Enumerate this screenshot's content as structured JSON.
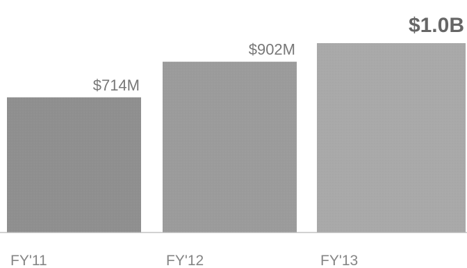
{
  "chart_data": {
    "type": "bar",
    "categories": [
      "FY'11",
      "FY'12",
      "FY'13"
    ],
    "values": [
      714,
      902,
      1000
    ],
    "value_labels": [
      "$714M",
      "$902M",
      "$1.0B"
    ],
    "unit": "$M",
    "ylim": [
      0,
      1000
    ],
    "grid": false,
    "legend": "none",
    "colors": {
      "bars": [
        "#8f8f8f",
        "#9b9b9b",
        "#a9a9a9"
      ],
      "value_label": "#777777",
      "highlight_label": "#666666",
      "axis": "#b7b7b7",
      "category_label": "#858585"
    }
  }
}
